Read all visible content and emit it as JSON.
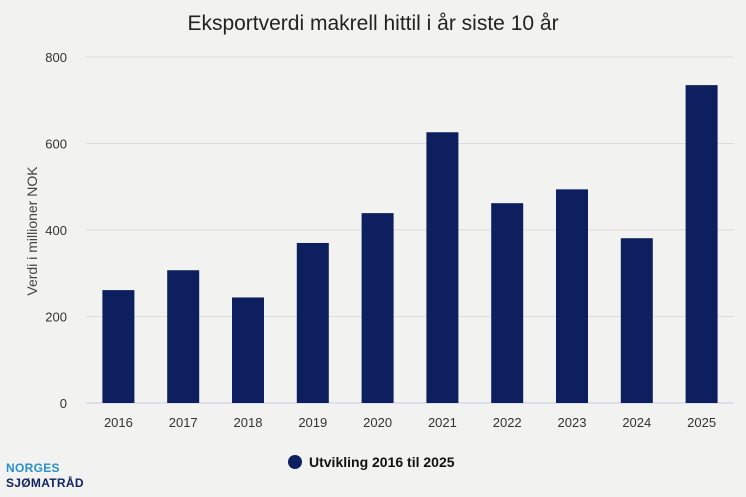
{
  "chart_data": {
    "type": "bar",
    "title": "Eksportverdi makrell hittil i år siste 10 år",
    "ylabel": "Verdi i millioner NOK",
    "xlabel": "",
    "categories": [
      "2016",
      "2017",
      "2018",
      "2019",
      "2020",
      "2021",
      "2022",
      "2023",
      "2024",
      "2025"
    ],
    "series": [
      {
        "name": "Utvikling 2016 til 2025",
        "color": "#0d1f5f",
        "values": [
          261,
          307,
          244,
          370,
          439,
          626,
          462,
          494,
          381,
          735
        ]
      }
    ],
    "ylim": [
      0,
      800
    ],
    "yticks": [
      "0",
      "200",
      "400",
      "600",
      "800"
    ],
    "grid": true,
    "legend_position": "bottom"
  },
  "logo": {
    "line1": "NORGES",
    "line2": "SJØMATRÅD"
  }
}
